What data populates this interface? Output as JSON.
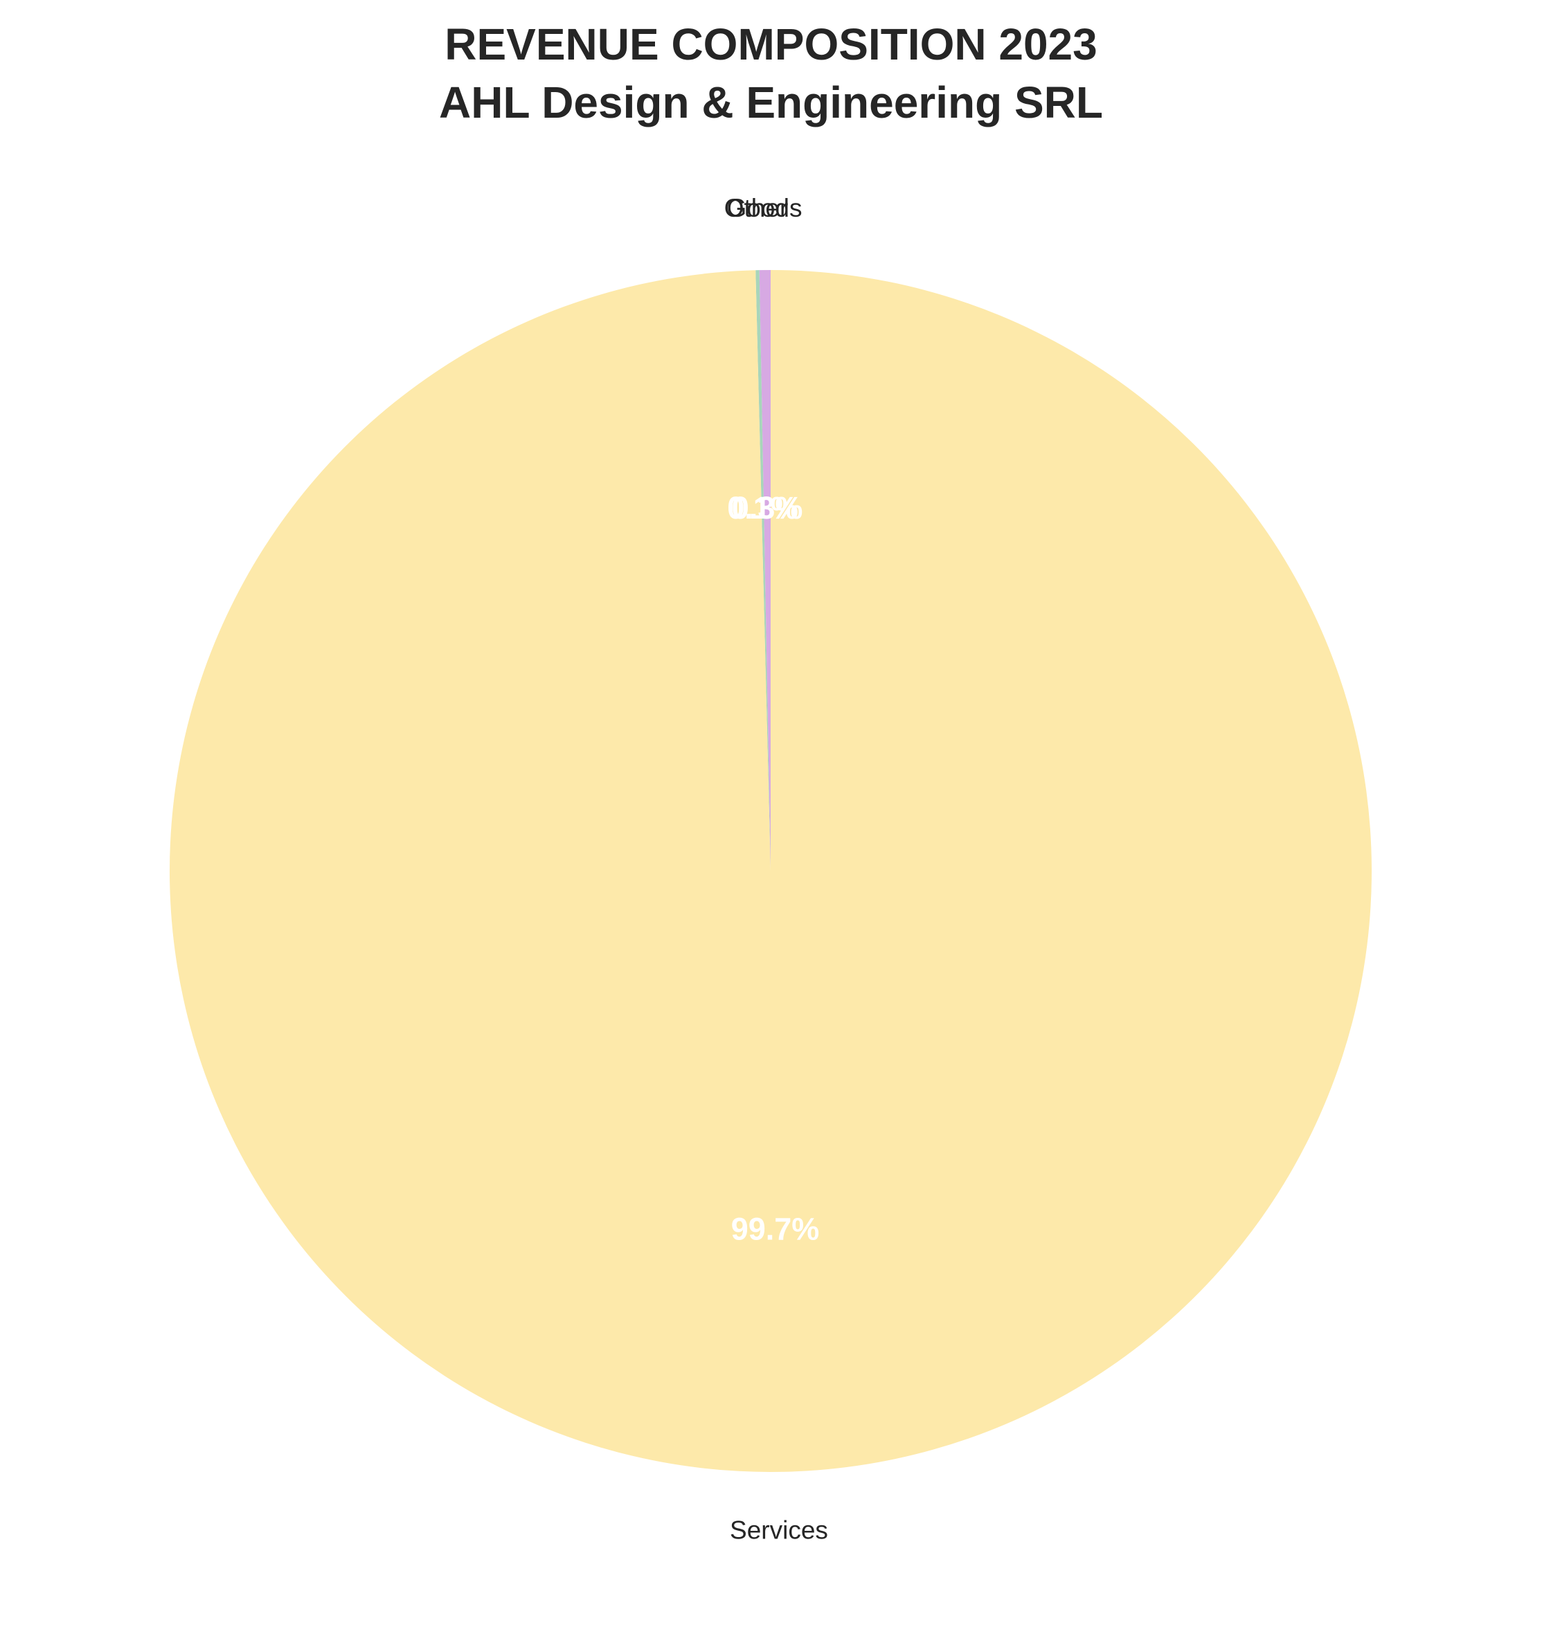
{
  "chart_data": {
    "type": "pie",
    "title": "REVENUE COMPOSITION 2023",
    "subtitle": "AHL Design & Engineering SRL",
    "start_angle": "90° (top), counterclockwise",
    "slices": [
      {
        "label": "Goods",
        "value": 0.3,
        "pct_label": "0.3%",
        "color": "#d7a9e3"
      },
      {
        "label": "Other",
        "value": 0.1,
        "pct_label": "0.1%",
        "color": "#a8d5ba"
      },
      {
        "label": "Services",
        "value": 99.7,
        "pct_label": "99.7%",
        "color": "#fde9aa"
      }
    ]
  }
}
